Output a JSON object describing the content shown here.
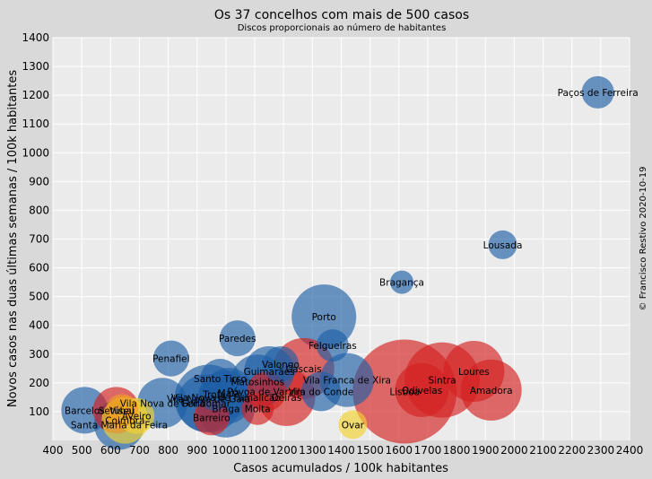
{
  "chart_data": {
    "type": "scatter",
    "title": "Os 37 concelhos com mais de 500 casos",
    "subtitle": "Discos proporcionais ao número de habitantes",
    "xlabel": "Casos acumulados / 100k habitantes",
    "ylabel": "Novos casos nas duas últimas semanas / 100k habitantes",
    "credit": "© Francisco Restivo 2020-10-19",
    "xlim": [
      400,
      2400
    ],
    "ylim": [
      0,
      1400
    ],
    "xticks": [
      400,
      500,
      600,
      700,
      800,
      900,
      1000,
      1100,
      1200,
      1300,
      1400,
      1500,
      1600,
      1700,
      1800,
      1900,
      2000,
      2100,
      2200,
      2300,
      2400
    ],
    "yticks": [
      100,
      200,
      300,
      400,
      500,
      600,
      700,
      800,
      900,
      1000,
      1100,
      1200,
      1300,
      1400
    ],
    "grid": true,
    "colors": {
      "blue": "#1f5fa6",
      "red": "#d42020",
      "yellow": "#f2d230",
      "orange": "#f0a020"
    },
    "points": [
      {
        "label": "Lisboa",
        "x": 1620,
        "y": 170,
        "r": 58,
        "color": "red"
      },
      {
        "label": "Sintra",
        "x": 1750,
        "y": 210,
        "r": 42,
        "color": "red"
      },
      {
        "label": "Loures",
        "x": 1860,
        "y": 240,
        "r": 34,
        "color": "red"
      },
      {
        "label": "Amadora",
        "x": 1920,
        "y": 175,
        "r": 34,
        "color": "red"
      },
      {
        "label": "Odivelas",
        "x": 1680,
        "y": 175,
        "r": 30,
        "color": "red"
      },
      {
        "label": "Cascais",
        "x": 1270,
        "y": 250,
        "r": 34,
        "color": "red"
      },
      {
        "label": "Oeiras",
        "x": 1210,
        "y": 150,
        "r": 32,
        "color": "red"
      },
      {
        "label": "Vila Franca de Xira",
        "x": 1420,
        "y": 210,
        "r": 30,
        "color": "blue"
      },
      {
        "label": "Póvoa de Varzim",
        "x": 1140,
        "y": 170,
        "r": 22,
        "color": "red"
      },
      {
        "label": "Vila do Conde",
        "x": 1330,
        "y": 170,
        "r": 22,
        "color": "blue"
      },
      {
        "label": "Moita",
        "x": 1110,
        "y": 110,
        "r": 18,
        "color": "red"
      },
      {
        "label": "Porto",
        "x": 1340,
        "y": 430,
        "r": 36,
        "color": "blue"
      },
      {
        "label": "Felgueiras",
        "x": 1370,
        "y": 330,
        "r": 18,
        "color": "blue"
      },
      {
        "label": "Bragança",
        "x": 1610,
        "y": 550,
        "r": 13,
        "color": "blue"
      },
      {
        "label": "Lousada",
        "x": 1960,
        "y": 680,
        "r": 16,
        "color": "blue"
      },
      {
        "label": "Paços de Ferreira",
        "x": 2290,
        "y": 1210,
        "r": 18,
        "color": "blue"
      },
      {
        "label": "Paredes",
        "x": 1040,
        "y": 355,
        "r": 20,
        "color": "blue"
      },
      {
        "label": "Penafiel",
        "x": 810,
        "y": 285,
        "r": 20,
        "color": "blue"
      },
      {
        "label": "Valongo",
        "x": 1190,
        "y": 265,
        "r": 20,
        "color": "blue"
      },
      {
        "label": "Guimarães",
        "x": 1150,
        "y": 240,
        "r": 28,
        "color": "blue"
      },
      {
        "label": "Matosinhos",
        "x": 1110,
        "y": 205,
        "r": 30,
        "color": "blue"
      },
      {
        "label": "Santo Tirso",
        "x": 980,
        "y": 215,
        "r": 22,
        "color": "blue"
      },
      {
        "label": "Maia",
        "x": 1010,
        "y": 165,
        "r": 28,
        "color": "blue"
      },
      {
        "label": "Trofa",
        "x": 960,
        "y": 160,
        "r": 18,
        "color": "blue"
      },
      {
        "label": "Vila Nova de Gaia",
        "x": 940,
        "y": 145,
        "r": 38,
        "color": "blue"
      },
      {
        "label": "Vila Nova de Famalicão",
        "x": 1000,
        "y": 150,
        "r": 30,
        "color": "blue"
      },
      {
        "label": "Gondomar",
        "x": 930,
        "y": 130,
        "r": 32,
        "color": "blue"
      },
      {
        "label": "Braga",
        "x": 1000,
        "y": 110,
        "r": 32,
        "color": "blue"
      },
      {
        "label": "Barreiro",
        "x": 950,
        "y": 80,
        "r": 20,
        "color": "red"
      },
      {
        "label": "Ovar",
        "x": 1440,
        "y": 55,
        "r": 16,
        "color": "yellow"
      },
      {
        "label": "Barcelos",
        "x": 510,
        "y": 105,
        "r": 26,
        "color": "blue"
      },
      {
        "label": "Setúbal",
        "x": 620,
        "y": 105,
        "r": 26,
        "color": "red"
      },
      {
        "label": "Vila Nova de Feira",
        "x": 780,
        "y": 130,
        "r": 28,
        "color": "blue"
      },
      {
        "label": "Aveiro",
        "x": 690,
        "y": 85,
        "r": 20,
        "color": "yellow"
      },
      {
        "label": "Coimbra",
        "x": 650,
        "y": 70,
        "r": 26,
        "color": "yellow"
      },
      {
        "label": "Viseu",
        "x": 640,
        "y": 105,
        "r": 18,
        "color": "orange"
      },
      {
        "label": "Santa Maria da Feira",
        "x": 630,
        "y": 55,
        "r": 28,
        "color": "blue"
      }
    ],
    "display_labels": {
      "Vila Nova de Gaia": "Vila Nova de Gaia",
      "Vila Nova de Feira": "Nova de Feira",
      "Vila Nova de Famalicão": "Vila Nova de Famalicão"
    }
  }
}
